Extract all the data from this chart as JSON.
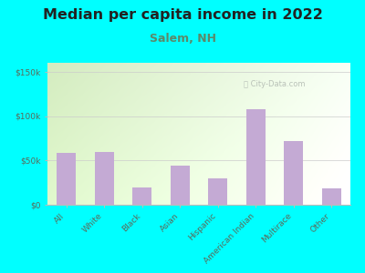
{
  "title": "Median per capita income in 2022",
  "subtitle": "Salem, NH",
  "categories": [
    "All",
    "White",
    "Black",
    "Asian",
    "Hispanic",
    "American Indian",
    "Multirace",
    "Other"
  ],
  "values": [
    58000,
    60000,
    20000,
    44000,
    30000,
    108000,
    72000,
    18000
  ],
  "bar_color": "#c4aad4",
  "outer_bg": "#00ffff",
  "title_fontsize": 11.5,
  "subtitle_fontsize": 9,
  "ylabel_ticks": [
    "$0",
    "$50k",
    "$100k",
    "$150k"
  ],
  "yticks": [
    0,
    50000,
    100000,
    150000
  ],
  "ylim": [
    0,
    160000
  ],
  "watermark": "ⓘ City-Data.com",
  "title_color": "#222222",
  "subtitle_color": "#5a8a6a",
  "tick_color": "#5a6a5a",
  "watermark_color": "#b0b8b0",
  "bg_left_color": "#d4ecc0",
  "bg_right_color": "#f8fff5",
  "spine_color": "#bbbbbb"
}
